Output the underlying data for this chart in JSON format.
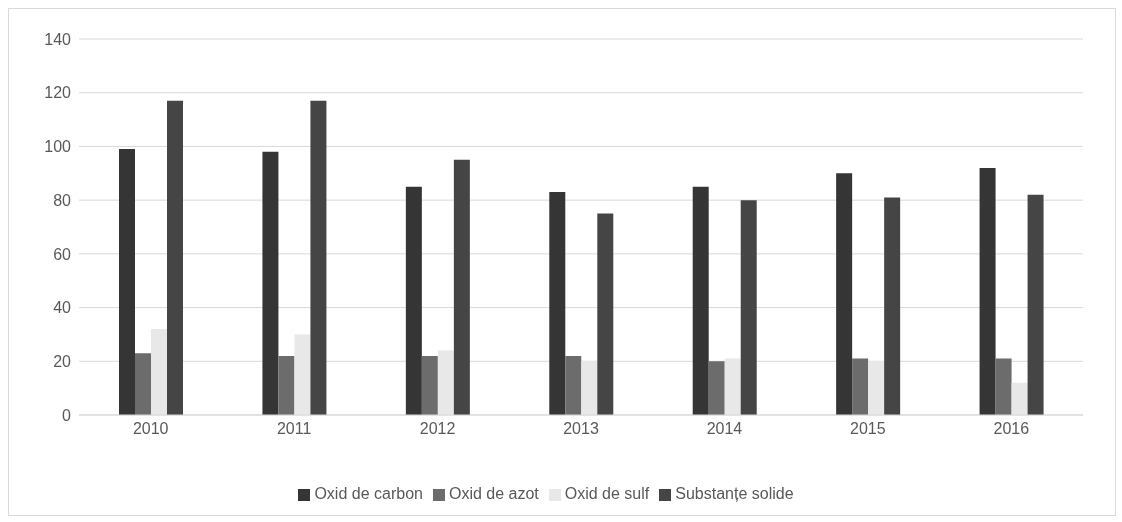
{
  "chart_data": {
    "type": "bar",
    "categories": [
      "2010",
      "2011",
      "2012",
      "2013",
      "2014",
      "2015",
      "2016"
    ],
    "series": [
      {
        "name": "Oxid de carbon",
        "color": "#353535",
        "values": [
          99,
          98,
          85,
          83,
          85,
          90,
          92
        ]
      },
      {
        "name": "Oxid de azot",
        "color": "#6c6c6c",
        "values": [
          23,
          22,
          22,
          22,
          20,
          21,
          21
        ]
      },
      {
        "name": "Oxid de sulf",
        "color": "#e8e8e8",
        "values": [
          32,
          30,
          24,
          20,
          21,
          20,
          12
        ]
      },
      {
        "name": "Substanțe solide",
        "color": "#454545",
        "values": [
          117,
          117,
          95,
          75,
          80,
          81,
          82
        ]
      }
    ],
    "ylim": [
      0,
      140
    ],
    "yticks": [
      0,
      20,
      40,
      60,
      80,
      100,
      120,
      140
    ],
    "grid": "y",
    "legend": "bottom"
  }
}
